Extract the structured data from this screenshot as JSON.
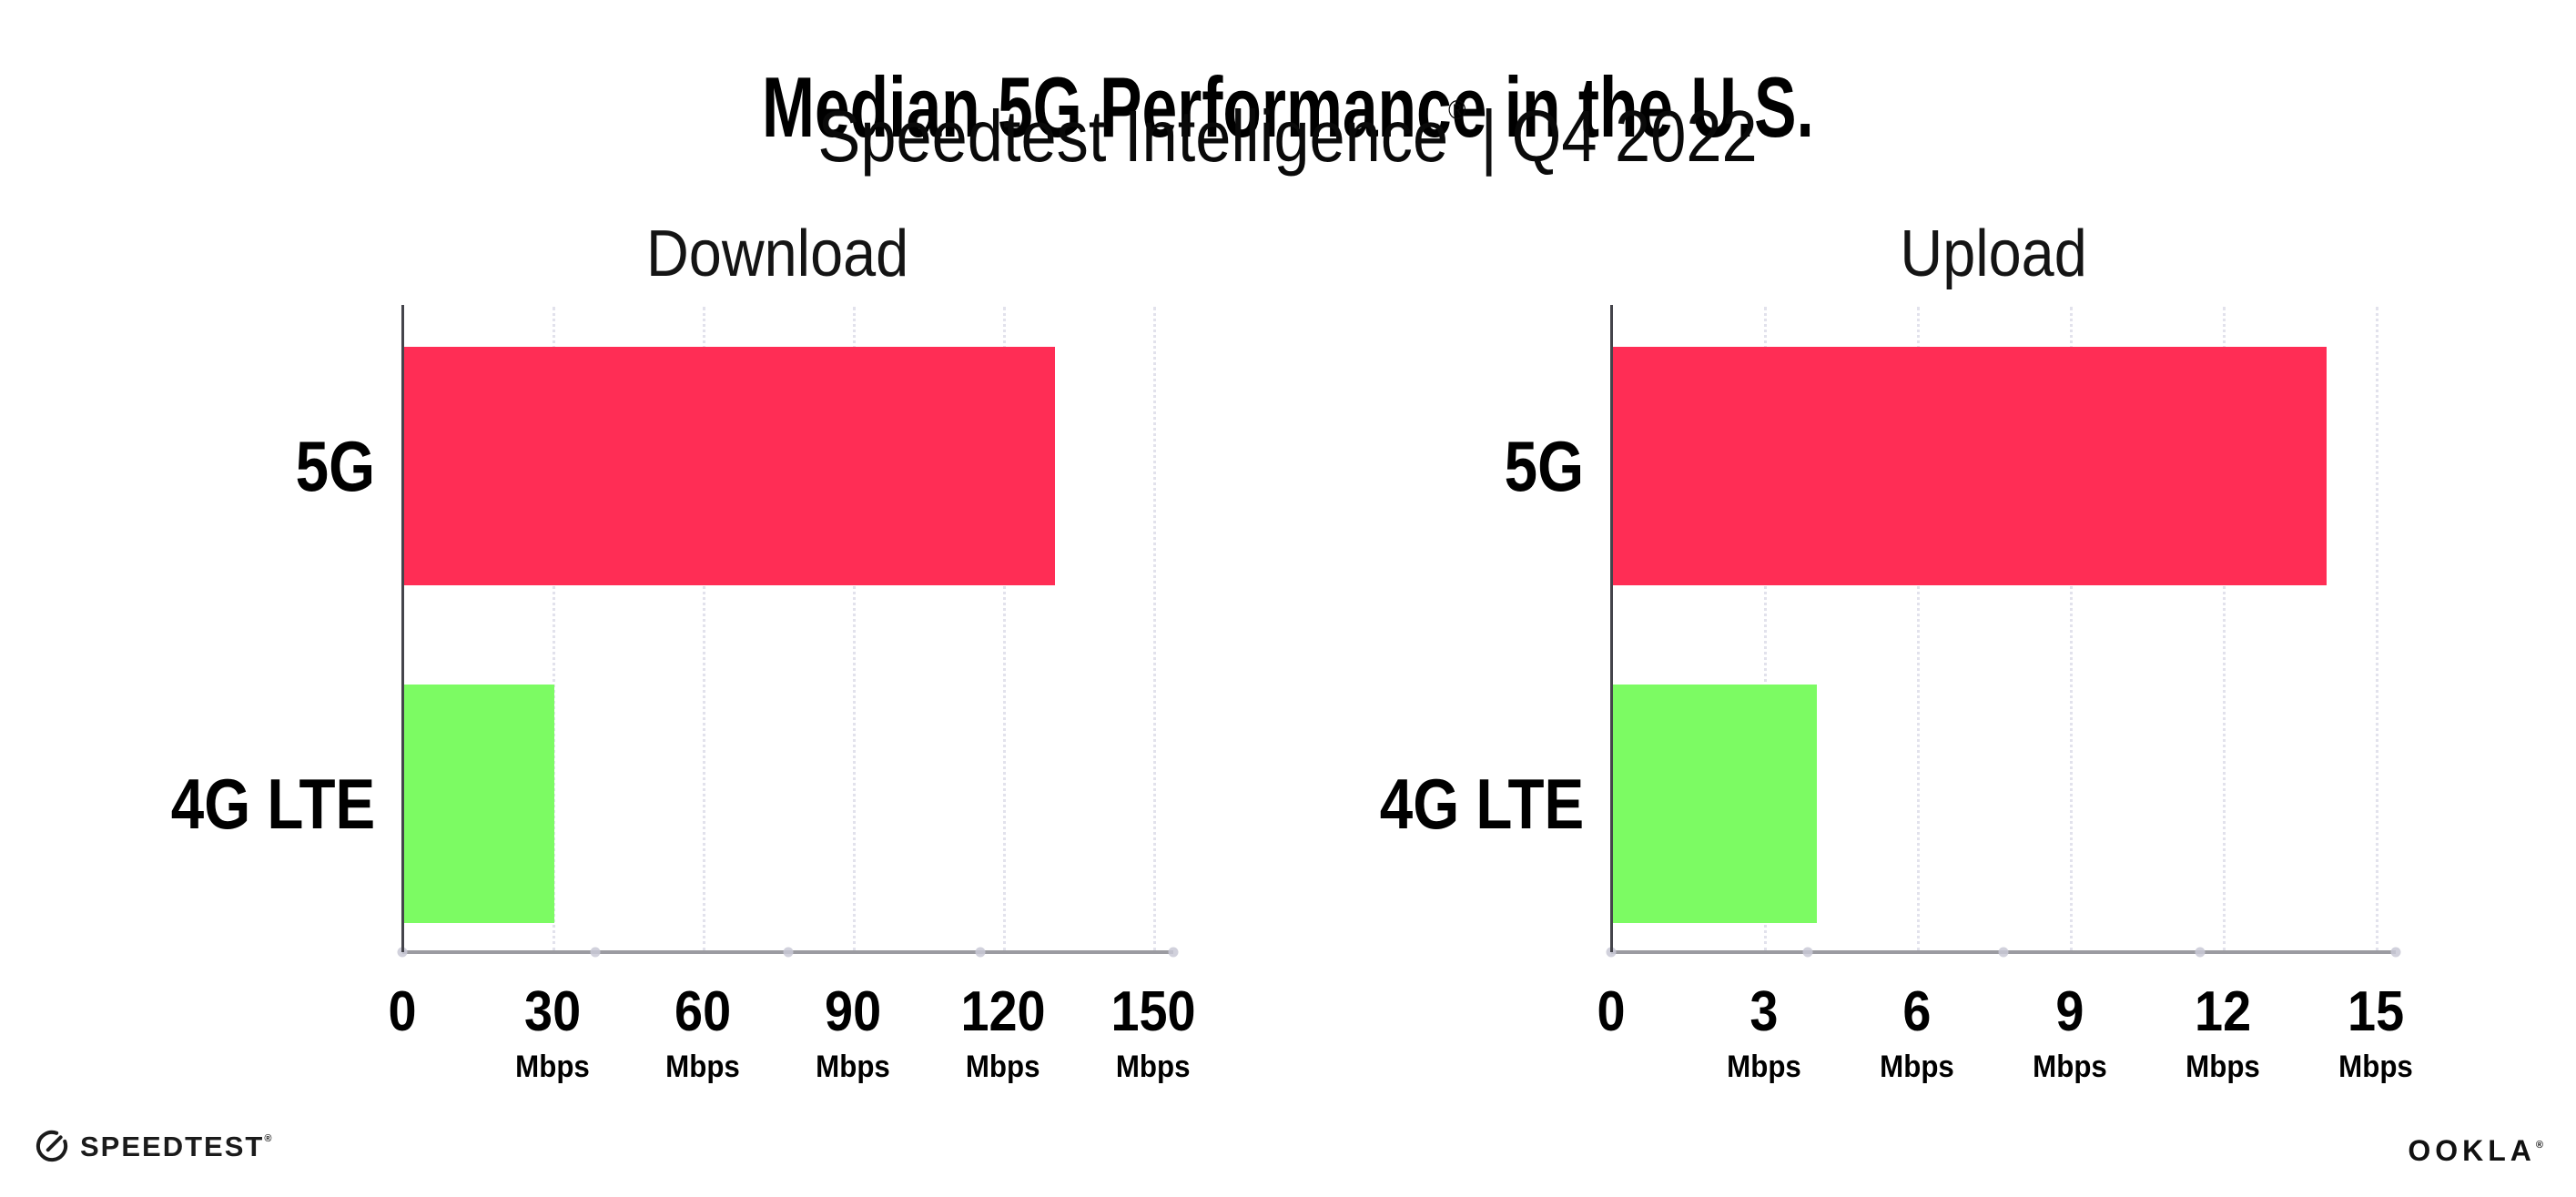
{
  "header": {
    "title": "Median 5G Performance in the U.S.",
    "subtitle": {
      "brand": "Speedtest Intelligence",
      "reg_mark": "®",
      "separator": "|",
      "period": "Q4 2022"
    }
  },
  "chart_data": [
    {
      "type": "bar",
      "orientation": "horizontal",
      "title": "Download",
      "categories": [
        "5G",
        "4G LTE"
      ],
      "values": [
        130,
        30
      ],
      "unit": "Mbps",
      "xlim": [
        0,
        150
      ],
      "xticks": [
        {
          "value": 0,
          "label": "0",
          "unit": ""
        },
        {
          "value": 30,
          "label": "30",
          "unit": "Mbps"
        },
        {
          "value": 60,
          "label": "60",
          "unit": "Mbps"
        },
        {
          "value": 90,
          "label": "90",
          "unit": "Mbps"
        },
        {
          "value": 120,
          "label": "120",
          "unit": "Mbps"
        },
        {
          "value": 150,
          "label": "150",
          "unit": "Mbps"
        }
      ],
      "bar_colors": [
        "#FF2D55",
        "#7CFB63"
      ],
      "grid": "dotted-vertical",
      "legend": "none"
    },
    {
      "type": "bar",
      "orientation": "horizontal",
      "title": "Upload",
      "categories": [
        "5G",
        "4G LTE"
      ],
      "values": [
        14,
        4
      ],
      "unit": "Mbps",
      "xlim": [
        0,
        15
      ],
      "xticks": [
        {
          "value": 0,
          "label": "0",
          "unit": ""
        },
        {
          "value": 3,
          "label": "3",
          "unit": "Mbps"
        },
        {
          "value": 6,
          "label": "6",
          "unit": "Mbps"
        },
        {
          "value": 9,
          "label": "9",
          "unit": "Mbps"
        },
        {
          "value": 12,
          "label": "12",
          "unit": "Mbps"
        },
        {
          "value": 15,
          "label": "15",
          "unit": "Mbps"
        }
      ],
      "bar_colors": [
        "#FF2D55",
        "#7CFB63"
      ],
      "grid": "dotted-vertical",
      "legend": "none"
    }
  ],
  "footer": {
    "speedtest_logo_text": "SPEEDTEST",
    "speedtest_mark": "®",
    "ookla_logo_text": "OOKLA",
    "ookla_mark": "®"
  },
  "colors": {
    "bar_5g": "#FF2D55",
    "bar_4g_lte": "#7CFB63",
    "gridline": "#E2E2EC",
    "baseline": "#9B9BA1",
    "y_axis": "#44444B",
    "text": "#000000"
  }
}
